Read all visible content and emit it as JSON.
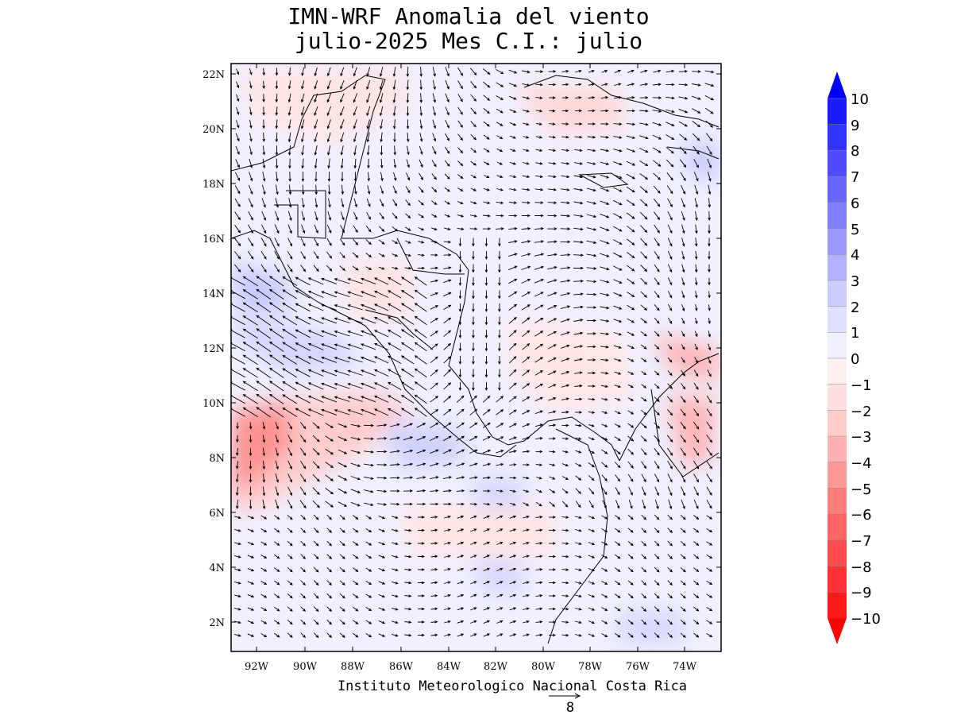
{
  "title": {
    "line1": "IMN-WRF Anomalia del viento",
    "line2": "julio-2025 Mes C.I.: julio"
  },
  "map": {
    "lon_range": [
      -93.2,
      -72.4
    ],
    "lat_range": [
      1.0,
      22.4
    ],
    "lon_ticks": [
      "92W",
      "90W",
      "88W",
      "86W",
      "84W",
      "82W",
      "80W",
      "78W",
      "76W",
      "74W"
    ],
    "lon_tick_values": [
      -92,
      -90,
      -88,
      -86,
      -84,
      -82,
      -80,
      -78,
      -76,
      -74
    ],
    "lat_ticks": [
      "2N",
      "4N",
      "6N",
      "8N",
      "10N",
      "12N",
      "14N",
      "16N",
      "18N",
      "20N",
      "22N"
    ],
    "lat_tick_values": [
      2,
      4,
      6,
      8,
      10,
      12,
      14,
      16,
      18,
      20,
      22
    ]
  },
  "colorbar": {
    "levels": [
      "10",
      "9",
      "8",
      "7",
      "6",
      "5",
      "4",
      "3",
      "2",
      "1",
      "0",
      "−1",
      "−2",
      "−3",
      "−4",
      "−5",
      "−6",
      "−7",
      "−8",
      "−9",
      "−10"
    ],
    "colors_top_to_bottom": [
      "#1a1aff",
      "#3333ff",
      "#4d4dff",
      "#6666ff",
      "#7f7fff",
      "#9999ff",
      "#b2b2ff",
      "#ccccff",
      "#e0e0ff",
      "#f0f0ff",
      "#fff0f0",
      "#ffe0e0",
      "#ffcccc",
      "#ffb2b2",
      "#ff9999",
      "#ff7f7f",
      "#ff6666",
      "#ff4d4d",
      "#ff3333",
      "#ff1a1a"
    ],
    "max_color": "#0000ff",
    "min_color": "#ff0000"
  },
  "credit": "Instituto Meteorologico Nacional Costa Rica",
  "reference_vector": {
    "label": "8"
  }
}
